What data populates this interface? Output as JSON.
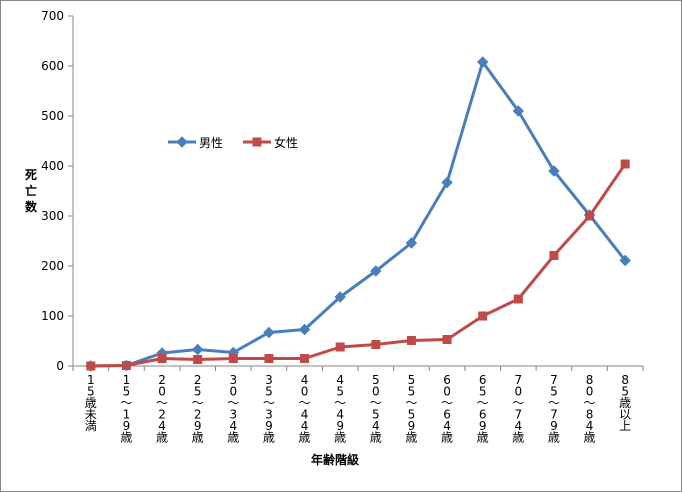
{
  "chart_data": {
    "type": "line",
    "xlabel": "年齢階級",
    "ylabel": "死亡数",
    "ylim": [
      0,
      700
    ],
    "yticks": [
      "0",
      "100",
      "200",
      "300",
      "400",
      "500",
      "600",
      "700"
    ],
    "categories": [
      "15歳未満",
      "15～19歳",
      "20～24歳",
      "25～29歳",
      "30～34歳",
      "35～39歳",
      "40～44歳",
      "45～49歳",
      "50～54歳",
      "55～59歳",
      "60～64歳",
      "65～69歳",
      "70～74歳",
      "75～79歳",
      "80～84歳",
      "85歳以上"
    ],
    "legend_position": "inside-left",
    "grid": false,
    "series": [
      {
        "name": "男性",
        "color": "#4A7EBB",
        "marker": "diamond",
        "values": [
          0,
          1,
          26,
          33,
          27,
          67,
          73,
          138,
          190,
          246,
          367,
          608,
          510,
          390,
          302,
          211
        ]
      },
      {
        "name": "女性",
        "color": "#BE4B48",
        "marker": "square",
        "values": [
          0,
          1,
          15,
          13,
          15,
          15,
          15,
          38,
          43,
          51,
          53,
          100,
          134,
          221,
          300,
          404
        ]
      }
    ]
  }
}
